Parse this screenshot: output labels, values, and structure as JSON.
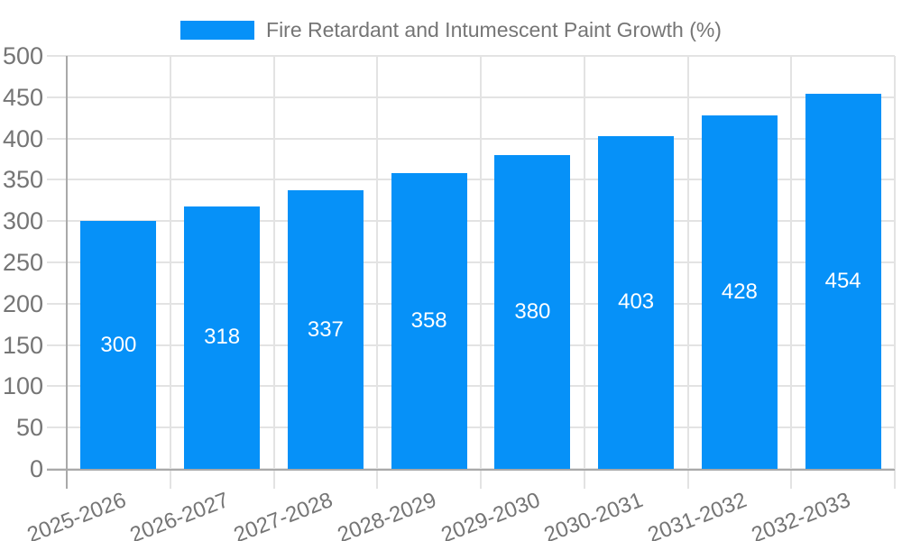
{
  "chart_data": {
    "type": "bar",
    "title": "Fire Retardant and Intumescent Paint Growth (%)",
    "legend": {
      "position": "top",
      "label": "Fire Retardant and Intumescent Paint Growth (%)"
    },
    "categories": [
      "2025-2026",
      "2026-2027",
      "2027-2028",
      "2028-2029",
      "2029-2030",
      "2030-2031",
      "2031-2032",
      "2032-2033"
    ],
    "series": [
      {
        "name": "Fire Retardant and Intumescent Paint Growth (%)",
        "values": [
          300,
          318,
          337,
          358,
          380,
          403,
          428,
          454
        ]
      }
    ],
    "bar_value_labels_visible": true,
    "xlabel": "",
    "ylabel": "",
    "ylim": [
      0,
      500
    ],
    "ytick_step": 50,
    "yticks": [
      0,
      50,
      100,
      150,
      200,
      250,
      300,
      350,
      400,
      450,
      500
    ],
    "grid": true,
    "x_tick_label_rotation_deg": -21,
    "colors": {
      "bar": "#0691f8",
      "grid": "#e3e3e3",
      "axis": "#a9a9a9",
      "tick_text": "#757575",
      "legend_text": "#757575",
      "bar_label_text": "#ffffff",
      "background": "#ffffff"
    }
  }
}
